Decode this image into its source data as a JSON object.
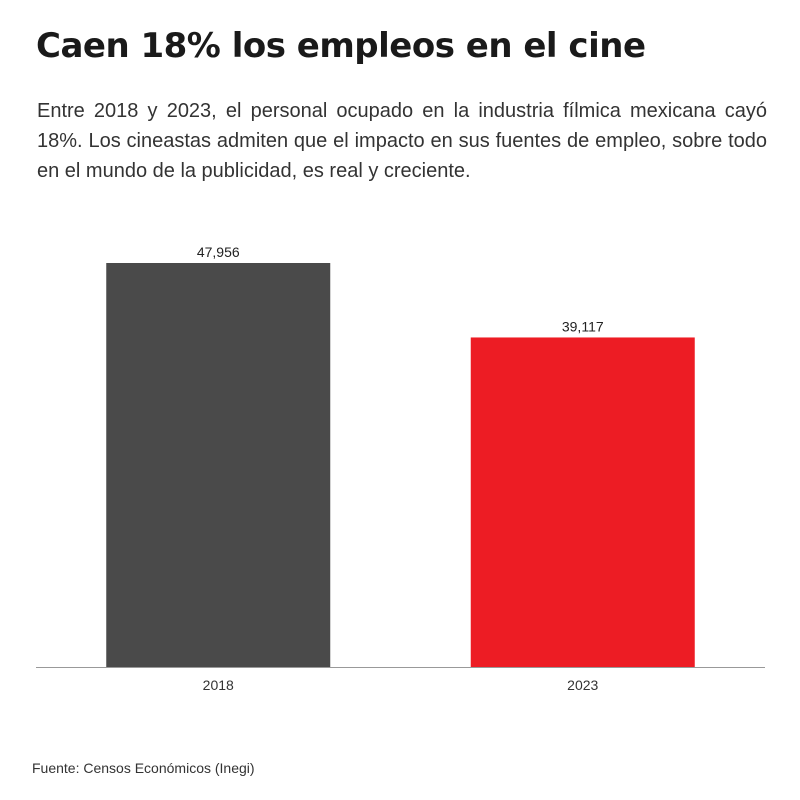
{
  "header": {
    "title": "Caen 18% los empleos en el cine",
    "subtitle": "Entre 2018 y 2023, el personal ocupado en la industria fílmica mexicana cayó 18%. Los cineastas admiten que el impacto en sus fuentes de empleo, sobre todo en el mundo de la publicidad, es real y creciente."
  },
  "chart_data": {
    "type": "bar",
    "categories": [
      "2018",
      "2023"
    ],
    "values": [
      47956,
      39117
    ],
    "value_labels": [
      "47,956",
      "39,117"
    ],
    "colors": [
      "#4a4a4a",
      "#ed1c24"
    ],
    "ylim": [
      0,
      47956
    ],
    "grid": false,
    "legend": "none"
  },
  "footer": {
    "source": "Fuente: Censos Económicos (Inegi)"
  },
  "colors": {
    "axis": "#999999",
    "text": "#222222"
  }
}
